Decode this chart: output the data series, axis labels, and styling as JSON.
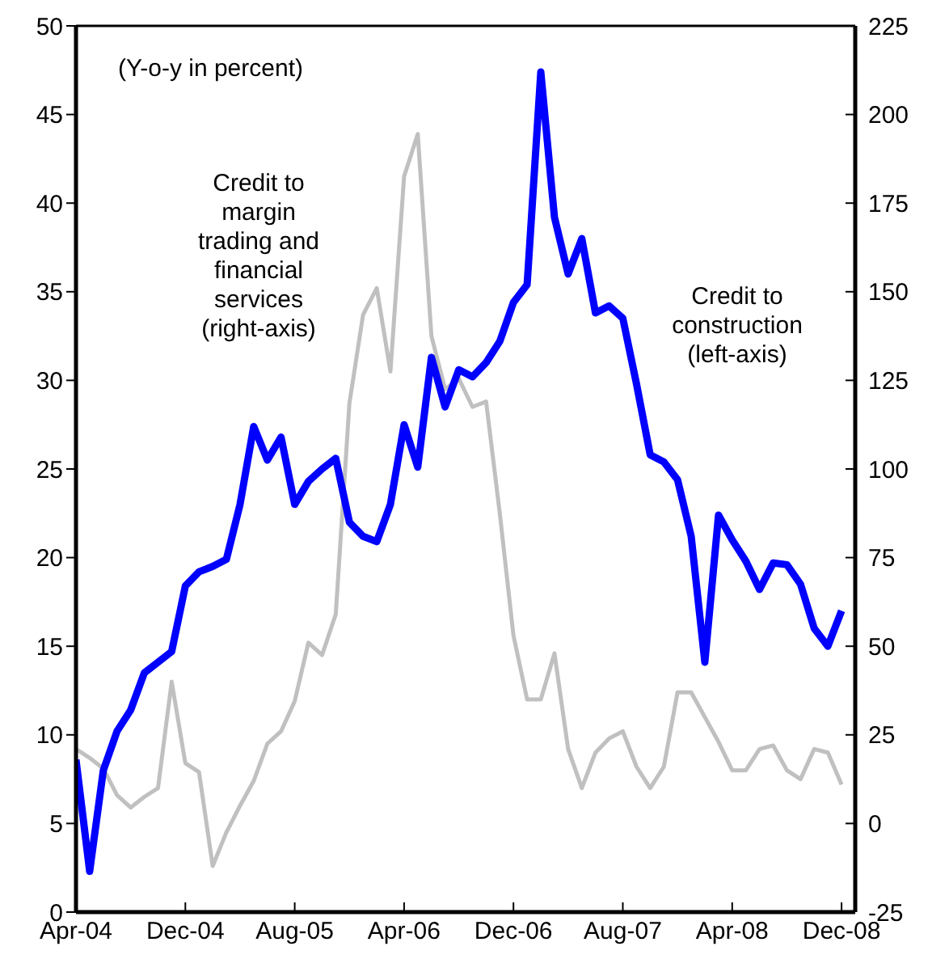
{
  "chart_data": {
    "type": "line",
    "annotations": [
      "(Y-o-y in percent)"
    ],
    "x": [
      "2004-04",
      "2004-05",
      "2004-06",
      "2004-07",
      "2004-08",
      "2004-09",
      "2004-10",
      "2004-11",
      "2004-12",
      "2005-01",
      "2005-02",
      "2005-03",
      "2005-04",
      "2005-05",
      "2005-06",
      "2005-07",
      "2005-08",
      "2005-09",
      "2005-10",
      "2005-11",
      "2005-12",
      "2006-01",
      "2006-02",
      "2006-03",
      "2006-04",
      "2006-05",
      "2006-06",
      "2006-07",
      "2006-08",
      "2006-09",
      "2006-10",
      "2006-11",
      "2006-12",
      "2007-01",
      "2007-02",
      "2007-03",
      "2007-04",
      "2007-05",
      "2007-06",
      "2007-07",
      "2007-08",
      "2007-09",
      "2007-10",
      "2007-11",
      "2007-12",
      "2008-01",
      "2008-02",
      "2008-03",
      "2008-04",
      "2008-05",
      "2008-06",
      "2008-07",
      "2008-08",
      "2008-09",
      "2008-10",
      "2008-11",
      "2008-12"
    ],
    "series": [
      {
        "name": "Credit to margin trading and financial services (right-axis)",
        "color": "#c0c0c0",
        "axis": "y2",
        "values": [
          21,
          18.5,
          15.5,
          8,
          4.5,
          7.5,
          10,
          40,
          17,
          14.5,
          -12,
          -2.5,
          5,
          12,
          22.5,
          26,
          34.5,
          51,
          47.5,
          59,
          118.5,
          143.5,
          151,
          127.5,
          182.5,
          194.5,
          137.5,
          122.5,
          125.5,
          117.5,
          119,
          87.5,
          53,
          35,
          35,
          48,
          21,
          10,
          20,
          24,
          26,
          16,
          10,
          16,
          37,
          37,
          30,
          23,
          15,
          15,
          21,
          22,
          15,
          12.5,
          21,
          20,
          11
        ]
      },
      {
        "name": "Credit to construction (left-axis)",
        "color": "#0000ff",
        "values": [
          8.6,
          2.3,
          8,
          10.2,
          11.4,
          13.5,
          14.1,
          14.7,
          18.4,
          19.2,
          19.5,
          19.9,
          23,
          27.4,
          25.5,
          26.8,
          23,
          24.3,
          25,
          25.6,
          22,
          21.2,
          20.9,
          23,
          27.5,
          25.1,
          31.3,
          28.5,
          30.6,
          30.2,
          31,
          32.2,
          34.4,
          35.4,
          47.4,
          39.2,
          36,
          38,
          33.8,
          34.2,
          33.5,
          29.8,
          25.8,
          25.4,
          24.4,
          21.2,
          14.1,
          22.4,
          21,
          19.8,
          18.2,
          19.7,
          19.6,
          18.5,
          16,
          15,
          17
        ]
      }
    ],
    "xlim": [
      "2004-04",
      "2009-01"
    ],
    "xticks": [
      {
        "value": "2004-04",
        "label": "Apr-04"
      },
      {
        "value": "2004-12",
        "label": "Dec-04"
      },
      {
        "value": "2005-08",
        "label": "Aug-05"
      },
      {
        "value": "2006-04",
        "label": "Apr-06"
      },
      {
        "value": "2006-12",
        "label": "Dec-06"
      },
      {
        "value": "2007-08",
        "label": "Aug-07"
      },
      {
        "value": "2008-04",
        "label": "Apr-08"
      },
      {
        "value": "2008-12",
        "label": "Dec-08"
      }
    ],
    "ylim": [
      0,
      50
    ],
    "yticks": [
      0,
      5,
      10,
      15,
      20,
      25,
      30,
      35,
      40,
      45,
      50
    ],
    "y2lim": [
      -25,
      225
    ],
    "y2ticks": [
      -25,
      0,
      25,
      50,
      75,
      100,
      125,
      150,
      175,
      200,
      225
    ],
    "grid": false,
    "marker": "none",
    "line_style": "solid"
  }
}
